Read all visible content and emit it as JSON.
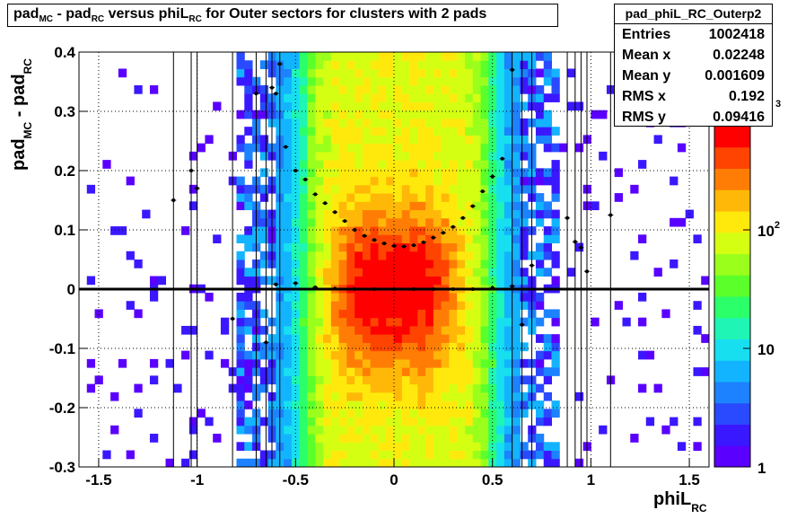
{
  "title_parts": {
    "a": "pad",
    "a_sub": "MC",
    "b": " - pad",
    "b_sub": "RC",
    "c": " versus phiL",
    "c_sub": "RC",
    "d": " for Outer sectors for clusters with 2 pads"
  },
  "stats": {
    "name": "pad_phiL_RC_Outerp2",
    "rows": [
      {
        "label": "Entries",
        "value": "1002418"
      },
      {
        "label": "Mean x",
        "value": "0.02248"
      },
      {
        "label": "Mean y",
        "value": "0.001609"
      },
      {
        "label": "RMS x",
        "value": "0.192"
      },
      {
        "label": "RMS y",
        "value": "0.09416"
      }
    ]
  },
  "chart_data": {
    "type": "heatmap",
    "title": "pad_MC - pad_RC versus phiL_RC for Outer sectors for clusters with 2 pads",
    "xlabel": "phiL_RC",
    "ylabel": "pad_MC - pad_RC",
    "xlim": [
      -1.6,
      1.6
    ],
    "ylim": [
      -0.3,
      0.4
    ],
    "x_ticks": [
      "-1.5",
      "-1",
      "-0.5",
      "0",
      "0.5",
      "1",
      "1.5"
    ],
    "y_ticks": [
      "-0.3",
      "-0.2",
      "-0.1",
      "0",
      "0.1",
      "0.2",
      "0.3",
      "0.4"
    ],
    "z_scale": "log",
    "z_ticks": [
      "1",
      "10",
      "10^2",
      "10^3"
    ],
    "grid": true,
    "colors": {
      "low": "#5a00ff",
      "mid": "#2bff55",
      "high": "#ff0000"
    },
    "profile_rms": {
      "x": [
        -0.6,
        -0.55,
        -0.5,
        -0.45,
        -0.4,
        -0.35,
        -0.3,
        -0.25,
        -0.2,
        -0.15,
        -0.1,
        -0.05,
        0.0,
        0.05,
        0.1,
        0.15,
        0.2,
        0.25,
        0.3,
        0.35,
        0.4,
        0.45,
        0.5,
        0.55
      ],
      "y": [
        0.33,
        0.24,
        0.2,
        0.185,
        0.16,
        0.145,
        0.13,
        0.115,
        0.1,
        0.09,
        0.083,
        0.077,
        0.073,
        0.072,
        0.074,
        0.079,
        0.087,
        0.095,
        0.105,
        0.12,
        0.14,
        0.165,
        0.19,
        0.22
      ]
    },
    "profile_mean": {
      "x": [
        -0.6,
        -0.5,
        -0.4,
        -0.3,
        -0.2,
        -0.1,
        0.0,
        0.1,
        0.2,
        0.3,
        0.4,
        0.5,
        0.6
      ],
      "y": [
        0.008,
        0.01,
        0.003,
        0.001,
        0.0,
        0.0,
        0.0,
        0.0,
        0.0,
        0.0,
        0.0,
        0.002,
        0.005
      ]
    },
    "outer_points": {
      "x": [
        -1.12,
        -1.03,
        -1.0,
        -0.82,
        -0.7,
        -0.65,
        -0.62,
        -0.58,
        0.6,
        0.65,
        0.7,
        0.88,
        0.92,
        0.95,
        0.98,
        1.1
      ],
      "y": [
        0.15,
        0.2,
        0.17,
        -0.05,
        0.33,
        -0.09,
        0.34,
        0.38,
        0.37,
        -0.06,
        0.04,
        0.12,
        0.08,
        0.07,
        0.03,
        0.125
      ]
    }
  }
}
